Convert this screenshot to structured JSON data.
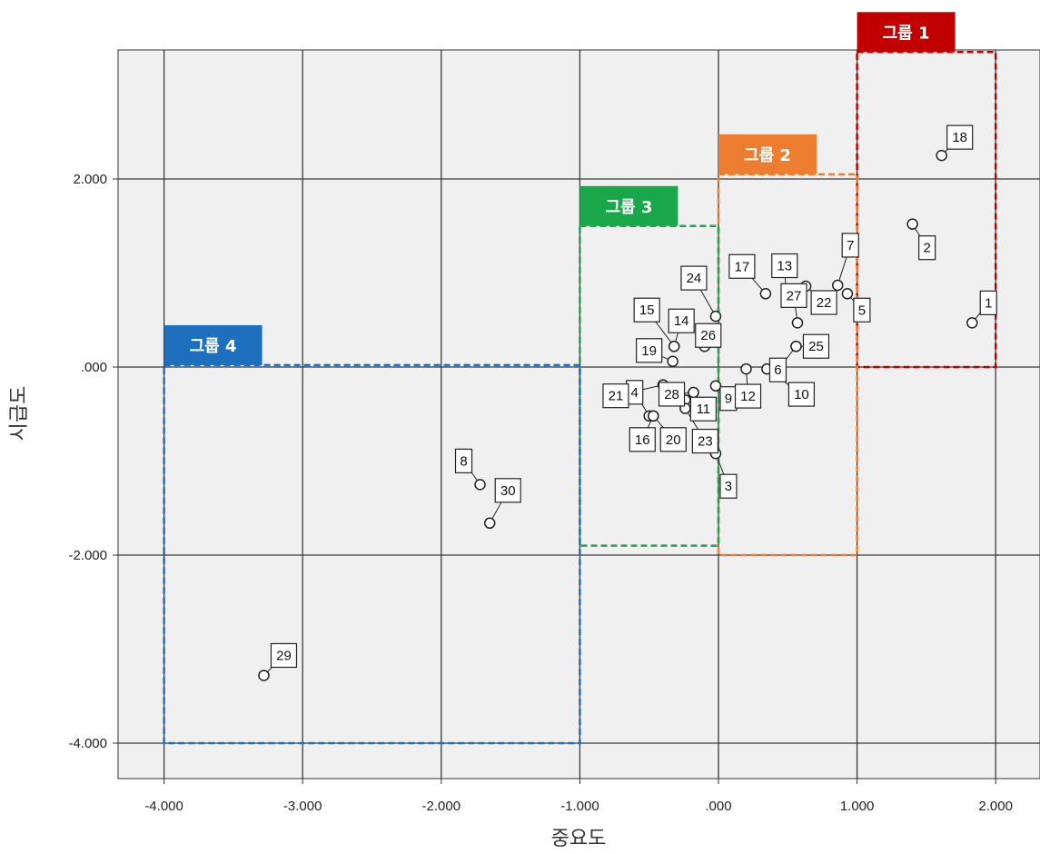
{
  "chart_data": {
    "type": "scatter",
    "xlabel": "중요도",
    "ylabel": "시급도",
    "xlim": [
      -4.35,
      2.3
    ],
    "ylim": [
      -4.35,
      3.4
    ],
    "x_ticks": [
      -4,
      -3,
      -2,
      -1,
      0,
      1,
      2
    ],
    "x_tick_labels": [
      "-4.000",
      "-3.000",
      "-2.000",
      "-1.000",
      ".000",
      "1.000",
      "2.000"
    ],
    "y_ticks": [
      -4,
      -2,
      0,
      2
    ],
    "y_tick_labels": [
      "-4.000",
      "-2.000",
      ".000",
      "2.000"
    ],
    "grid": true,
    "points": [
      {
        "id": "1",
        "x": 1.83,
        "y": 0.47
      },
      {
        "id": "2",
        "x": 1.4,
        "y": 1.52
      },
      {
        "id": "3",
        "x": -0.02,
        "y": -0.92
      },
      {
        "id": "4",
        "x": -0.5,
        "y": -0.52
      },
      {
        "id": "5",
        "x": 0.93,
        "y": 0.78
      },
      {
        "id": "6",
        "x": 0.56,
        "y": 0.22
      },
      {
        "id": "7",
        "x": 0.86,
        "y": 0.87
      },
      {
        "id": "8",
        "x": -1.72,
        "y": -1.25
      },
      {
        "id": "9",
        "x": -0.02,
        "y": -0.2
      },
      {
        "id": "10",
        "x": 0.35,
        "y": -0.02
      },
      {
        "id": "11",
        "x": -0.24,
        "y": -0.35
      },
      {
        "id": "12",
        "x": 0.2,
        "y": -0.02
      },
      {
        "id": "13",
        "x": 0.49,
        "y": 0.71
      },
      {
        "id": "14",
        "x": -0.32,
        "y": 0.22
      },
      {
        "id": "15",
        "x": -0.32,
        "y": 0.22
      },
      {
        "id": "16",
        "x": -0.47,
        "y": -0.52
      },
      {
        "id": "17",
        "x": 0.34,
        "y": 0.78
      },
      {
        "id": "18",
        "x": 1.61,
        "y": 2.25
      },
      {
        "id": "19",
        "x": -0.33,
        "y": 0.06
      },
      {
        "id": "20",
        "x": -0.47,
        "y": -0.52
      },
      {
        "id": "21",
        "x": -0.4,
        "y": -0.19
      },
      {
        "id": "22",
        "x": 0.63,
        "y": 0.86
      },
      {
        "id": "23",
        "x": -0.24,
        "y": -0.44
      },
      {
        "id": "24",
        "x": -0.02,
        "y": 0.54
      },
      {
        "id": "25",
        "x": 0.56,
        "y": 0.22
      },
      {
        "id": "26",
        "x": -0.1,
        "y": 0.22
      },
      {
        "id": "27",
        "x": 0.57,
        "y": 0.47
      },
      {
        "id": "28",
        "x": -0.18,
        "y": -0.27
      },
      {
        "id": "29",
        "x": -3.28,
        "y": -3.28
      },
      {
        "id": "30",
        "x": -1.65,
        "y": -1.66
      }
    ],
    "groups": [
      {
        "label": "그룹 1",
        "color": "#c00000",
        "x_range": [
          1,
          2
        ],
        "y_range": [
          0,
          3.35
        ]
      },
      {
        "label": "그룹 2",
        "color": "#ed7d31",
        "x_range": [
          0,
          1
        ],
        "y_range": [
          -2,
          2.05
        ]
      },
      {
        "label": "그룹 3",
        "color": "#1aa64a",
        "x_range": [
          -1,
          0
        ],
        "y_range": [
          -1.9,
          1.5
        ]
      },
      {
        "label": "그룹 4",
        "color": "#1f6fbf",
        "x_range": [
          -4,
          -1
        ],
        "y_range": [
          -4,
          0.02
        ]
      }
    ]
  }
}
